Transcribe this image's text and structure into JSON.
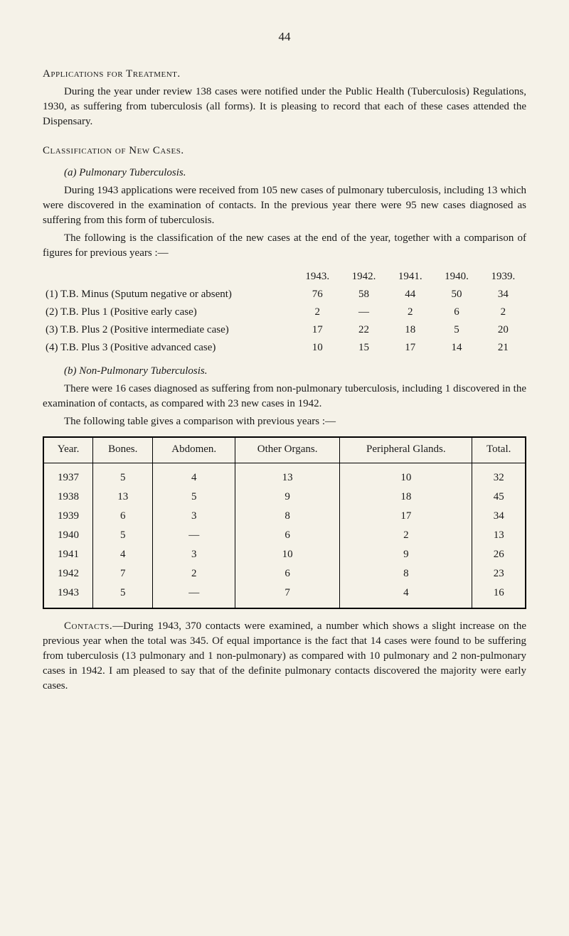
{
  "page_number": "44",
  "section1": {
    "heading": "Applications for Treatment.",
    "paragraph": "During the year under review 138 cases were notified under the Public Health (Tuberculosis) Regulations, 1930, as suffering from tuberculosis (all forms). It is pleasing to record that each of these cases attended the Dispensary."
  },
  "section2": {
    "heading": "Classification of New Cases.",
    "sub_a": {
      "label": "(a)   Pulmonary Tuberculosis.",
      "para1": "During 1943 applications were received from 105 new cases of pulmonary tuberculosis, including 13 which were discovered in the examination of contacts. In the previous year there were 95 new cases diagnosed as suffering from this form of tuberculosis.",
      "para2": "The following is the classification of the new cases at the end of the year, together with a comparison of figures for previous years :—",
      "table": {
        "header_years": [
          "1943.",
          "1942.",
          "1941.",
          "1940.",
          "1939."
        ],
        "rows": [
          {
            "label": "(1) T.B. Minus (Sputum negative or absent)",
            "values": [
              "76",
              "58",
              "44",
              "50",
              "34"
            ]
          },
          {
            "label": "(2) T.B. Plus 1 (Positive early case)",
            "values": [
              "2",
              "—",
              "2",
              "6",
              "2"
            ]
          },
          {
            "label": "(3) T.B. Plus 2 (Positive intermediate case)",
            "values": [
              "17",
              "22",
              "18",
              "5",
              "20"
            ]
          },
          {
            "label": "(4) T.B. Plus 3 (Positive advanced case)",
            "values": [
              "10",
              "15",
              "17",
              "14",
              "21"
            ]
          }
        ]
      }
    },
    "sub_b": {
      "label": "(b)   Non-Pulmonary Tuberculosis.",
      "para1": "There were 16 cases diagnosed as suffering from non-pulmonary tuberculosis, including 1 discovered in the examination of contacts, as compared with 23 new cases in 1942.",
      "para2": "The following table gives a comparison with previous years :—",
      "table": {
        "columns": [
          "Year.",
          "Bones.",
          "Abdomen.",
          "Other Organs.",
          "Peripheral Glands.",
          "Total."
        ],
        "rows": [
          [
            "1937",
            "5",
            "4",
            "13",
            "10",
            "32"
          ],
          [
            "1938",
            "13",
            "5",
            "9",
            "18",
            "45"
          ],
          [
            "1939",
            "6",
            "3",
            "8",
            "17",
            "34"
          ],
          [
            "1940",
            "5",
            "—",
            "6",
            "2",
            "13"
          ],
          [
            "1941",
            "4",
            "3",
            "10",
            "9",
            "26"
          ],
          [
            "1942",
            "7",
            "2",
            "6",
            "8",
            "23"
          ],
          [
            "1943",
            "5",
            "—",
            "7",
            "4",
            "16"
          ]
        ]
      }
    }
  },
  "section3": {
    "lead": "Contacts.",
    "paragraph": "—During 1943, 370 contacts were examined, a number which shows a slight increase on the previous year when the total was 345. Of equal importance is the fact that 14 cases were found to be suffering from tuberculosis (13 pulmonary and 1 non-pulmonary) as compared with 10 pulmonary and 2 non-pulmonary cases in 1942. I am pleased to say that of the definite pulmonary contacts discovered the majority were early cases."
  }
}
